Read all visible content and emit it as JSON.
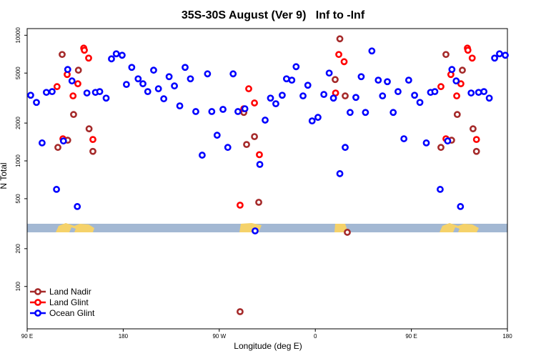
{
  "chart_data": {
    "type": "scatter",
    "title": "35S-30S August (Ver 9)   Inf to -Inf",
    "x_label": "Longitude (deg E)",
    "y_label": "N Total",
    "log_y": true,
    "legend": "lower left",
    "xlim": [
      90,
      540
    ],
    "xticks": [
      {
        "value": 90,
        "label": "90 E"
      },
      180,
      {
        "value": 270,
        "label": "90 W"
      },
      {
        "value": 360,
        "label": "0"
      },
      {
        "value": 450,
        "label": "90 E"
      },
      {
        "value": 540,
        "label": "180"
      }
    ],
    "ylim": [
      46,
      11300
    ],
    "yticks": [
      100,
      200,
      500,
      1000,
      2000,
      5000,
      10000
    ],
    "series": [
      {
        "name": "Land Nadir",
        "color": "#a52a2a",
        "x": [
          118.8,
          122.8,
          128,
          133.5,
          138,
          148,
          151.6,
          293,
          295.6,
          303,
          307,
          289.5,
          383,
          378.6,
          388,
          390,
          477.7,
          482.4,
          487.7,
          493,
          497.8,
          507.8,
          511
        ],
        "values": [
          1280,
          7030,
          1460,
          2340,
          5270,
          1800,
          1190,
          2430,
          1350,
          1560,
          468,
          63,
          9370,
          4440,
          3290,
          270,
          1280,
          7030,
          1460,
          2340,
          5270,
          1800,
          1190
        ]
      },
      {
        "name": "Land Glint",
        "color": "#ff0000",
        "x": [
          118,
          123.5,
          127.5,
          133,
          137.5,
          143,
          143.6,
          147.6,
          151.6,
          289.5,
          293,
          297.6,
          303,
          307.6,
          379,
          382,
          387,
          477.7,
          482.4,
          487,
          492.5,
          496.4,
          502.5,
          503,
          507,
          511
        ],
        "values": [
          3900,
          1500,
          4870,
          3290,
          4110,
          7900,
          7600,
          6580,
          1480,
          444,
          2600,
          3750,
          2890,
          1120,
          3470,
          7030,
          6160,
          3900,
          1500,
          4870,
          3290,
          4110,
          7900,
          7600,
          6580,
          1480
        ]
      },
      {
        "name": "Ocean Glint",
        "color": "#0000ff",
        "x": [
          93.3,
          98.7,
          104,
          108,
          113.4,
          117.5,
          124,
          128,
          132,
          137,
          146,
          154,
          158,
          164,
          169,
          173.5,
          179,
          183,
          188,
          194,
          198.5,
          203,
          208.5,
          213,
          218,
          223,
          228,
          233,
          238,
          243,
          248,
          254,
          259,
          263,
          268,
          273.5,
          278,
          283,
          287.5,
          294,
          303.6,
          308,
          313,
          318,
          323,
          329,
          333,
          338,
          342,
          348.5,
          353,
          357,
          362.5,
          368,
          373,
          377,
          383,
          388,
          392.6,
          398,
          403,
          407,
          413,
          419,
          423,
          427.5,
          433,
          437.5,
          443,
          447.5,
          453,
          458,
          464,
          468,
          472,
          477,
          484,
          488,
          492,
          496,
          506,
          513,
          518,
          523,
          528,
          532.6,
          538
        ],
        "values": [
          3330,
          2920,
          1390,
          3510,
          3560,
          593,
          1440,
          5340,
          4330,
          433,
          3470,
          3510,
          3560,
          3160,
          6490,
          7120,
          6930,
          4060,
          5550,
          4500,
          4110,
          3560,
          5270,
          3750,
          3120,
          4680,
          3950,
          2740,
          5550,
          4500,
          2470,
          1110,
          4930,
          2470,
          1600,
          2570,
          1280,
          4930,
          2470,
          2600,
          277,
          937,
          2110,
          3160,
          2850,
          3330,
          4500,
          4390,
          5620,
          3290,
          4000,
          2080,
          2220,
          3380,
          5000,
          3160,
          791,
          1280,
          2430,
          3200,
          4680,
          2430,
          7500,
          4390,
          3290,
          4270,
          2430,
          3560,
          1500,
          4390,
          3330,
          2920,
          1390,
          3510,
          3560,
          593,
          1440,
          5340,
          4330,
          433,
          3470,
          3510,
          3560,
          3160,
          6580,
          7120,
          6930
        ]
      }
    ]
  }
}
